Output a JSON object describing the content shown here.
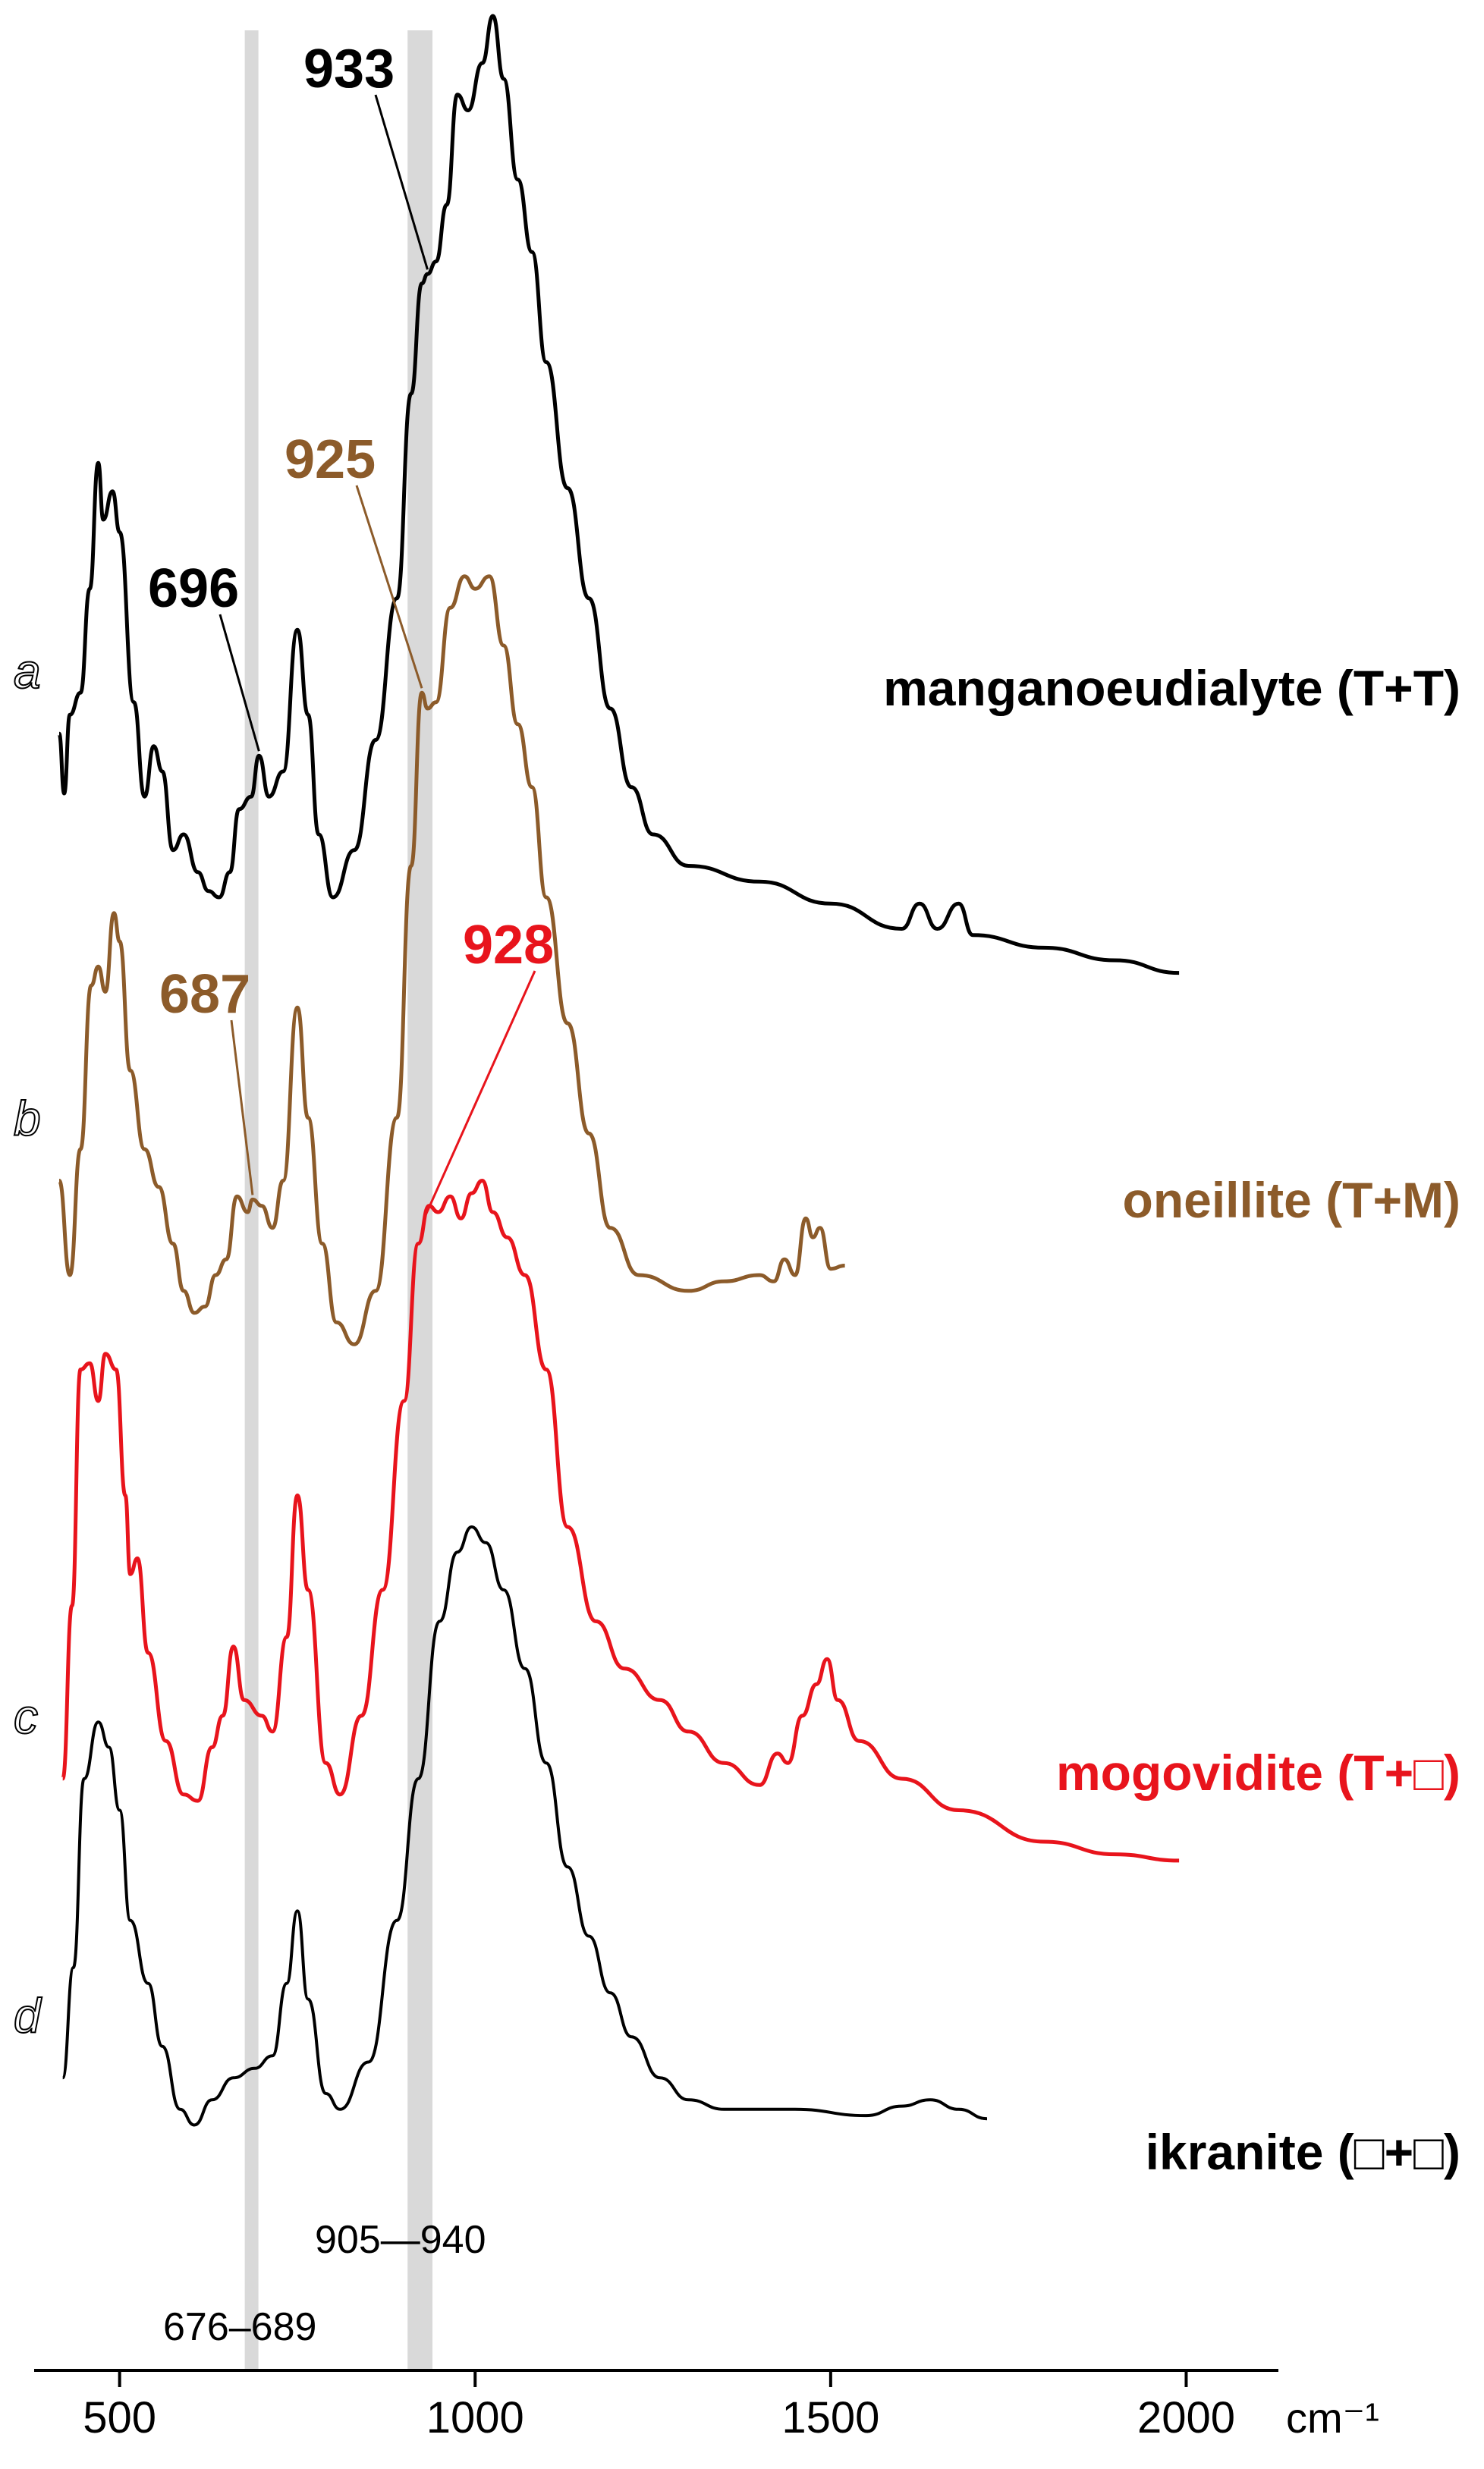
{
  "chart_data": {
    "type": "line",
    "xlabel": "cm⁻¹",
    "xlim": [
      415,
      2080
    ],
    "x_ticks": [
      {
        "value": 500,
        "label": "500"
      },
      {
        "value": 1000,
        "label": "1000"
      },
      {
        "value": 1500,
        "label": "1500"
      },
      {
        "value": 2000,
        "label": "2000"
      }
    ],
    "grid": false,
    "bands": [
      {
        "from": 676,
        "to": 689,
        "label": "676–689",
        "color": "#d9d9d9"
      },
      {
        "from": 905,
        "to": 940,
        "label": "905—940",
        "color": "#d9d9d9"
      }
    ],
    "series": [
      {
        "letter": "a",
        "name": "manganoeudialyte (T+T)",
        "color": "#000000",
        "offset": 4.0,
        "points": [
          [
            415,
            0.32
          ],
          [
            422,
            0.13
          ],
          [
            430,
            0.38
          ],
          [
            445,
            0.45
          ],
          [
            458,
            0.78
          ],
          [
            470,
            1.18
          ],
          [
            477,
            1.0
          ],
          [
            490,
            1.09
          ],
          [
            500,
            0.96
          ],
          [
            520,
            0.42
          ],
          [
            535,
            0.12
          ],
          [
            548,
            0.28
          ],
          [
            560,
            0.2
          ],
          [
            575,
            -0.05
          ],
          [
            590,
            0.0
          ],
          [
            610,
            -0.12
          ],
          [
            625,
            -0.18
          ],
          [
            640,
            -0.2
          ],
          [
            655,
            -0.12
          ],
          [
            668,
            0.08
          ],
          [
            685,
            0.12
          ],
          [
            696,
            0.25
          ],
          [
            710,
            0.12
          ],
          [
            730,
            0.2
          ],
          [
            750,
            0.65
          ],
          [
            765,
            0.38
          ],
          [
            780,
            0.0
          ],
          [
            800,
            -0.2
          ],
          [
            830,
            -0.05
          ],
          [
            860,
            0.3
          ],
          [
            890,
            0.75
          ],
          [
            910,
            1.4
          ],
          [
            925,
            1.75
          ],
          [
            933,
            1.78
          ],
          [
            945,
            1.82
          ],
          [
            960,
            2.0
          ],
          [
            975,
            2.35
          ],
          [
            990,
            2.3
          ],
          [
            1010,
            2.45
          ],
          [
            1025,
            2.6
          ],
          [
            1040,
            2.4
          ],
          [
            1060,
            2.08
          ],
          [
            1080,
            1.85
          ],
          [
            1100,
            1.5
          ],
          [
            1130,
            1.1
          ],
          [
            1160,
            0.75
          ],
          [
            1190,
            0.4
          ],
          [
            1220,
            0.15
          ],
          [
            1250,
            0.0
          ],
          [
            1300,
            -0.1
          ],
          [
            1400,
            -0.15
          ],
          [
            1500,
            -0.22
          ],
          [
            1600,
            -0.3
          ],
          [
            1625,
            -0.22
          ],
          [
            1650,
            -0.3
          ],
          [
            1680,
            -0.22
          ],
          [
            1700,
            -0.32
          ],
          [
            1800,
            -0.36
          ],
          [
            1900,
            -0.4
          ],
          [
            1990,
            -0.44
          ]
        ]
      },
      {
        "letter": "b",
        "name": "oneillite (T+M)",
        "color": "#8c5b2a",
        "offset": 2.6,
        "points": [
          [
            415,
            0.3
          ],
          [
            430,
            0.0
          ],
          [
            445,
            0.4
          ],
          [
            460,
            0.92
          ],
          [
            470,
            0.98
          ],
          [
            480,
            0.9
          ],
          [
            492,
            1.15
          ],
          [
            500,
            1.06
          ],
          [
            515,
            0.65
          ],
          [
            535,
            0.4
          ],
          [
            555,
            0.28
          ],
          [
            575,
            0.1
          ],
          [
            590,
            -0.05
          ],
          [
            605,
            -0.12
          ],
          [
            620,
            -0.1
          ],
          [
            635,
            0.0
          ],
          [
            650,
            0.05
          ],
          [
            665,
            0.25
          ],
          [
            680,
            0.2
          ],
          [
            687,
            0.24
          ],
          [
            700,
            0.22
          ],
          [
            715,
            0.15
          ],
          [
            730,
            0.3
          ],
          [
            750,
            0.85
          ],
          [
            765,
            0.5
          ],
          [
            785,
            0.1
          ],
          [
            805,
            -0.15
          ],
          [
            830,
            -0.22
          ],
          [
            860,
            -0.05
          ],
          [
            890,
            0.5
          ],
          [
            910,
            1.3
          ],
          [
            925,
            1.85
          ],
          [
            933,
            1.8
          ],
          [
            945,
            1.82
          ],
          [
            965,
            2.12
          ],
          [
            985,
            2.22
          ],
          [
            1000,
            2.18
          ],
          [
            1020,
            2.22
          ],
          [
            1040,
            2.0
          ],
          [
            1060,
            1.75
          ],
          [
            1080,
            1.55
          ],
          [
            1100,
            1.2
          ],
          [
            1130,
            0.8
          ],
          [
            1160,
            0.45
          ],
          [
            1190,
            0.15
          ],
          [
            1230,
            0.0
          ],
          [
            1300,
            -0.05
          ],
          [
            1350,
            -0.02
          ],
          [
            1400,
            0.0
          ],
          [
            1420,
            -0.02
          ],
          [
            1435,
            0.05
          ],
          [
            1450,
            0.0
          ],
          [
            1465,
            0.18
          ],
          [
            1475,
            0.12
          ],
          [
            1485,
            0.15
          ],
          [
            1500,
            0.02
          ],
          [
            1520,
            0.03
          ]
        ]
      },
      {
        "letter": "c",
        "name": "mogovidite (T+□)",
        "color": "#e8141c",
        "offset": 1.0,
        "points": [
          [
            420,
            0.0
          ],
          [
            433,
            0.55
          ],
          [
            445,
            1.3
          ],
          [
            458,
            1.32
          ],
          [
            470,
            1.2
          ],
          [
            480,
            1.35
          ],
          [
            495,
            1.3
          ],
          [
            508,
            0.9
          ],
          [
            515,
            0.65
          ],
          [
            525,
            0.7
          ],
          [
            540,
            0.4
          ],
          [
            565,
            0.12
          ],
          [
            590,
            -0.05
          ],
          [
            610,
            -0.07
          ],
          [
            630,
            0.1
          ],
          [
            645,
            0.2
          ],
          [
            660,
            0.42
          ],
          [
            675,
            0.25
          ],
          [
            700,
            0.2
          ],
          [
            715,
            0.15
          ],
          [
            735,
            0.45
          ],
          [
            750,
            0.9
          ],
          [
            765,
            0.6
          ],
          [
            790,
            0.05
          ],
          [
            810,
            -0.05
          ],
          [
            840,
            0.2
          ],
          [
            870,
            0.6
          ],
          [
            900,
            1.2
          ],
          [
            920,
            1.7
          ],
          [
            935,
            1.82
          ],
          [
            948,
            1.8
          ],
          [
            965,
            1.85
          ],
          [
            980,
            1.78
          ],
          [
            995,
            1.86
          ],
          [
            1010,
            1.9
          ],
          [
            1025,
            1.8
          ],
          [
            1045,
            1.72
          ],
          [
            1070,
            1.6
          ],
          [
            1100,
            1.3
          ],
          [
            1130,
            0.8
          ],
          [
            1170,
            0.5
          ],
          [
            1210,
            0.35
          ],
          [
            1260,
            0.25
          ],
          [
            1300,
            0.15
          ],
          [
            1350,
            0.05
          ],
          [
            1400,
            -0.02
          ],
          [
            1425,
            0.08
          ],
          [
            1440,
            0.05
          ],
          [
            1460,
            0.2
          ],
          [
            1480,
            0.3
          ],
          [
            1495,
            0.38
          ],
          [
            1510,
            0.25
          ],
          [
            1540,
            0.12
          ],
          [
            1600,
            0.0
          ],
          [
            1680,
            -0.1
          ],
          [
            1800,
            -0.2
          ],
          [
            1900,
            -0.24
          ],
          [
            1990,
            -0.26
          ]
        ]
      },
      {
        "letter": "d",
        "name": "ikranite (□+□)",
        "color": "#000000",
        "offset": 0.0,
        "points": [
          [
            420,
            0.05
          ],
          [
            435,
            0.4
          ],
          [
            450,
            1.0
          ],
          [
            470,
            1.18
          ],
          [
            485,
            1.1
          ],
          [
            500,
            0.9
          ],
          [
            515,
            0.55
          ],
          [
            540,
            0.35
          ],
          [
            560,
            0.15
          ],
          [
            585,
            -0.05
          ],
          [
            605,
            -0.1
          ],
          [
            630,
            -0.02
          ],
          [
            660,
            0.05
          ],
          [
            690,
            0.08
          ],
          [
            715,
            0.12
          ],
          [
            735,
            0.35
          ],
          [
            750,
            0.58
          ],
          [
            765,
            0.3
          ],
          [
            790,
            0.0
          ],
          [
            810,
            -0.05
          ],
          [
            850,
            0.1
          ],
          [
            890,
            0.55
          ],
          [
            920,
            1.0
          ],
          [
            950,
            1.5
          ],
          [
            975,
            1.72
          ],
          [
            995,
            1.8
          ],
          [
            1015,
            1.75
          ],
          [
            1040,
            1.6
          ],
          [
            1070,
            1.35
          ],
          [
            1100,
            1.05
          ],
          [
            1130,
            0.72
          ],
          [
            1160,
            0.5
          ],
          [
            1190,
            0.32
          ],
          [
            1220,
            0.18
          ],
          [
            1260,
            0.05
          ],
          [
            1300,
            -0.02
          ],
          [
            1350,
            -0.05
          ],
          [
            1450,
            -0.05
          ],
          [
            1550,
            -0.07
          ],
          [
            1600,
            -0.04
          ],
          [
            1640,
            -0.02
          ],
          [
            1680,
            -0.05
          ],
          [
            1720,
            -0.08
          ]
        ]
      }
    ],
    "annotations": [
      {
        "series": 0,
        "at": 933,
        "label": "933"
      },
      {
        "series": 0,
        "at": 696,
        "label": "696"
      },
      {
        "series": 1,
        "at": 925,
        "label": "925"
      },
      {
        "series": 1,
        "at": 687,
        "label": "687"
      },
      {
        "series": 2,
        "at": 928,
        "label": "928"
      }
    ]
  }
}
